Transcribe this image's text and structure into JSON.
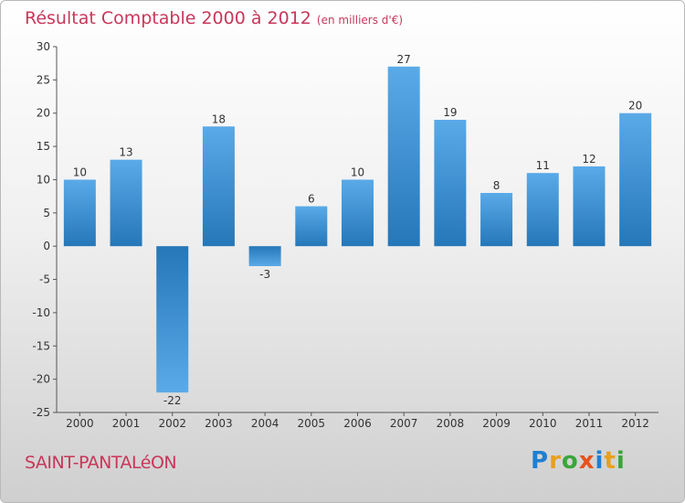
{
  "title": "Résultat Comptable 2000 à 2012",
  "subtitle": "(en milliers d'€)",
  "commune": "SAINT-PANTALéON",
  "logo_text": "Proxiti",
  "colors": {
    "bar_top": "#5aaae8",
    "bar_bottom": "#2577b8",
    "title": "#c8375a"
  },
  "chart_data": {
    "type": "bar",
    "categories": [
      "2000",
      "2001",
      "2002",
      "2003",
      "2004",
      "2005",
      "2006",
      "2007",
      "2008",
      "2009",
      "2010",
      "2011",
      "2012"
    ],
    "values": [
      10,
      13,
      -22,
      18,
      -3,
      6,
      10,
      27,
      19,
      8,
      11,
      12,
      20
    ],
    "ylim": [
      -25,
      30
    ],
    "yticks": [
      -25,
      -20,
      -15,
      -10,
      -5,
      0,
      5,
      10,
      15,
      20,
      25,
      30
    ],
    "grid": false,
    "data_labels": true
  }
}
